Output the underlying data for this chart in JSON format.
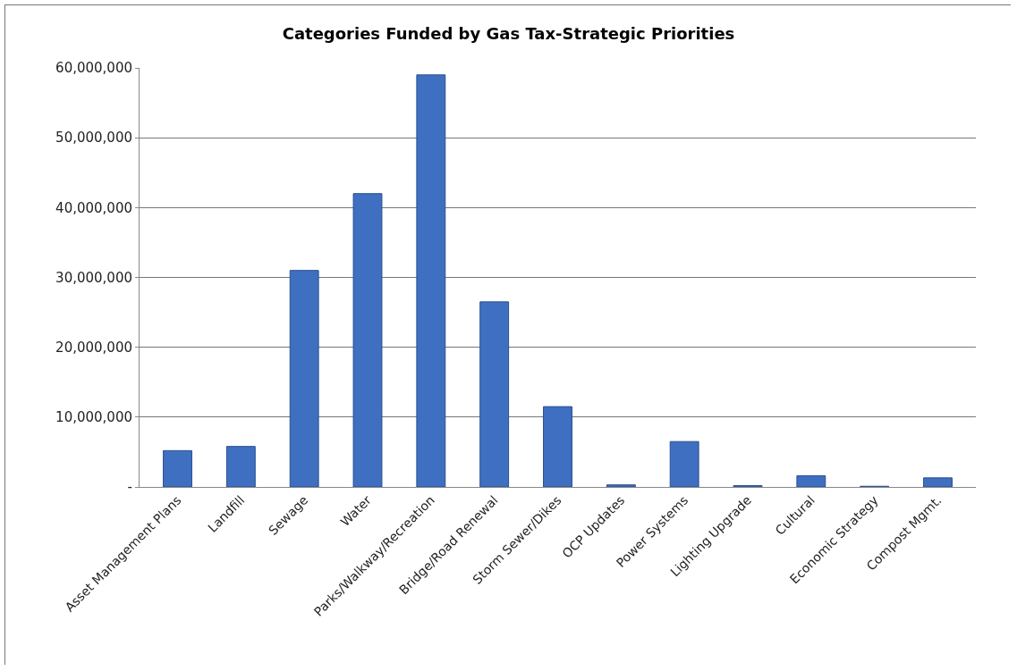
{
  "chart_data": {
    "type": "bar",
    "title": "Categories Funded by Gas Tax-Strategic Priorities",
    "categories": [
      "Asset Management Plans",
      "Landfill",
      "Sewage",
      "Water",
      "Parks/Walkway/Recreation",
      "Bridge/Road Renewal",
      "Storm Sewer/Dikes",
      "OCP Updates",
      "Power Systems",
      "Lighting Upgrade",
      "Cultural",
      "Economic Strategy",
      "Compost Mgmt."
    ],
    "values": [
      5200000,
      5800000,
      31000000,
      42000000,
      59000000,
      26500000,
      11500000,
      300000,
      6500000,
      200000,
      1600000,
      100000,
      1300000
    ],
    "color": "#3f6fc0",
    "ylim": [
      0,
      60000000
    ],
    "yticks": [
      {
        "value": 0,
        "label": "-"
      },
      {
        "value": 10000000,
        "label": "10,000,000"
      },
      {
        "value": 20000000,
        "label": "20,000,000"
      },
      {
        "value": 30000000,
        "label": "30,000,000"
      },
      {
        "value": 40000000,
        "label": "40,000,000"
      },
      {
        "value": 50000000,
        "label": "50,000,000"
      },
      {
        "value": 60000000,
        "label": "60,000,000"
      }
    ],
    "grid": "y",
    "legend": false
  }
}
